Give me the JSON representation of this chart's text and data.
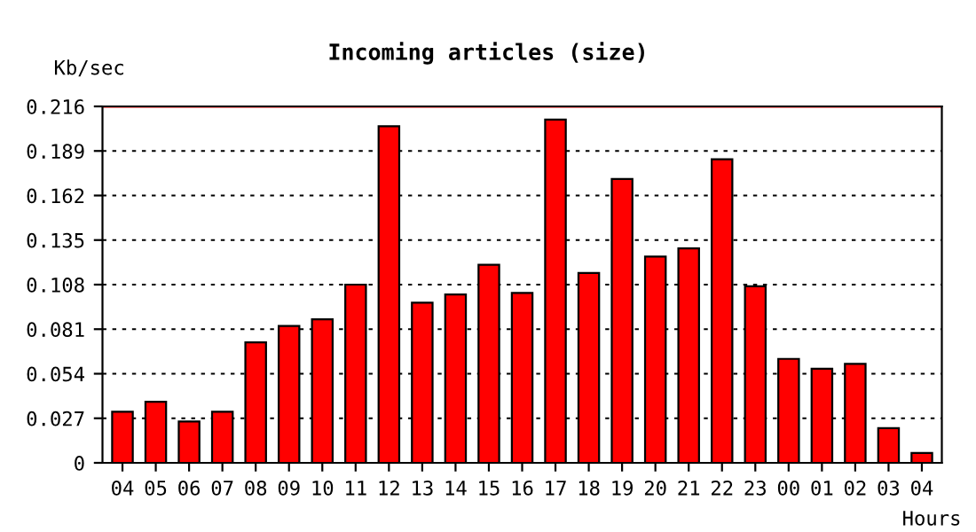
{
  "chart_data": {
    "type": "bar",
    "title": "Incoming articles (size)",
    "ylabel": "Kb/sec",
    "xlabel": "Hours",
    "categories": [
      "04",
      "05",
      "06",
      "07",
      "08",
      "09",
      "10",
      "11",
      "12",
      "13",
      "14",
      "15",
      "16",
      "17",
      "18",
      "19",
      "20",
      "21",
      "22",
      "23",
      "00",
      "01",
      "02",
      "03",
      "04"
    ],
    "values": [
      0.031,
      0.037,
      0.025,
      0.031,
      0.073,
      0.083,
      0.087,
      0.108,
      0.204,
      0.097,
      0.102,
      0.12,
      0.103,
      0.208,
      0.115,
      0.172,
      0.125,
      0.13,
      0.184,
      0.107,
      0.063,
      0.057,
      0.06,
      0.021,
      0.006
    ],
    "color": "#ff0000",
    "ylim": [
      0,
      0.216
    ],
    "yticks": [
      {
        "value": 0,
        "label": "0"
      },
      0.027,
      0.054,
      0.081,
      {
        "value": 0.108,
        "label": "0.108"
      },
      0.135,
      {
        "value": 0.162,
        "label": "0.162"
      },
      0.189,
      {
        "value": 0.216,
        "label": "0.216"
      }
    ],
    "grid": "y",
    "ref_lines": [
      {
        "axis": "y",
        "value": 0.216,
        "color": "#ff0000",
        "line_style": "solid"
      }
    ]
  }
}
